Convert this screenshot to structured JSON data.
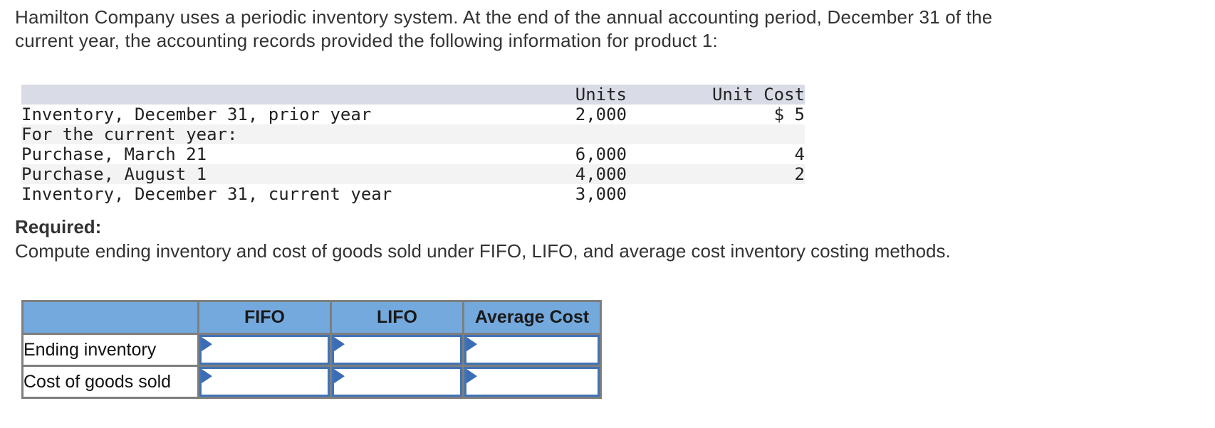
{
  "intro": {
    "line1": "Hamilton Company uses a periodic inventory system. At the end of the annual accounting period, December 31 of the",
    "line2": "current year, the accounting records provided the following information for product 1:"
  },
  "inventory_table": {
    "headers": {
      "units": "Units",
      "unit_cost": "Unit Cost"
    },
    "rows": [
      {
        "desc": "Inventory, December 31, prior year",
        "units": "2,000",
        "unit_cost": "$ 5"
      },
      {
        "desc": "For the current year:",
        "units": "",
        "unit_cost": ""
      },
      {
        "desc": "Purchase, March 21",
        "units": "6,000",
        "unit_cost": "4"
      },
      {
        "desc": "Purchase, August 1",
        "units": "4,000",
        "unit_cost": "2"
      },
      {
        "desc": "Inventory, December 31, current year",
        "units": "3,000",
        "unit_cost": ""
      }
    ]
  },
  "required": {
    "label": "Required:",
    "instruction": "Compute ending inventory and cost of goods sold under FIFO, LIFO, and average cost inventory costing methods."
  },
  "answer_table": {
    "columns": [
      "FIFO",
      "LIFO",
      "Average Cost"
    ],
    "rows": [
      {
        "label": "Ending inventory",
        "values": [
          "",
          "",
          ""
        ]
      },
      {
        "label": "Cost of goods sold",
        "values": [
          "",
          "",
          ""
        ]
      }
    ]
  },
  "icons": {
    "flag": "answer-flag-icon"
  },
  "colors": {
    "answer_header_blue": "#74a9dd",
    "input_border_blue": "#4173b6",
    "flag_blue": "#3a6db3",
    "grid_gray": "#7e7e7e",
    "table_header_band": "#d9dce6",
    "stripe_gray": "#f3f3f4",
    "text": "#333333"
  }
}
